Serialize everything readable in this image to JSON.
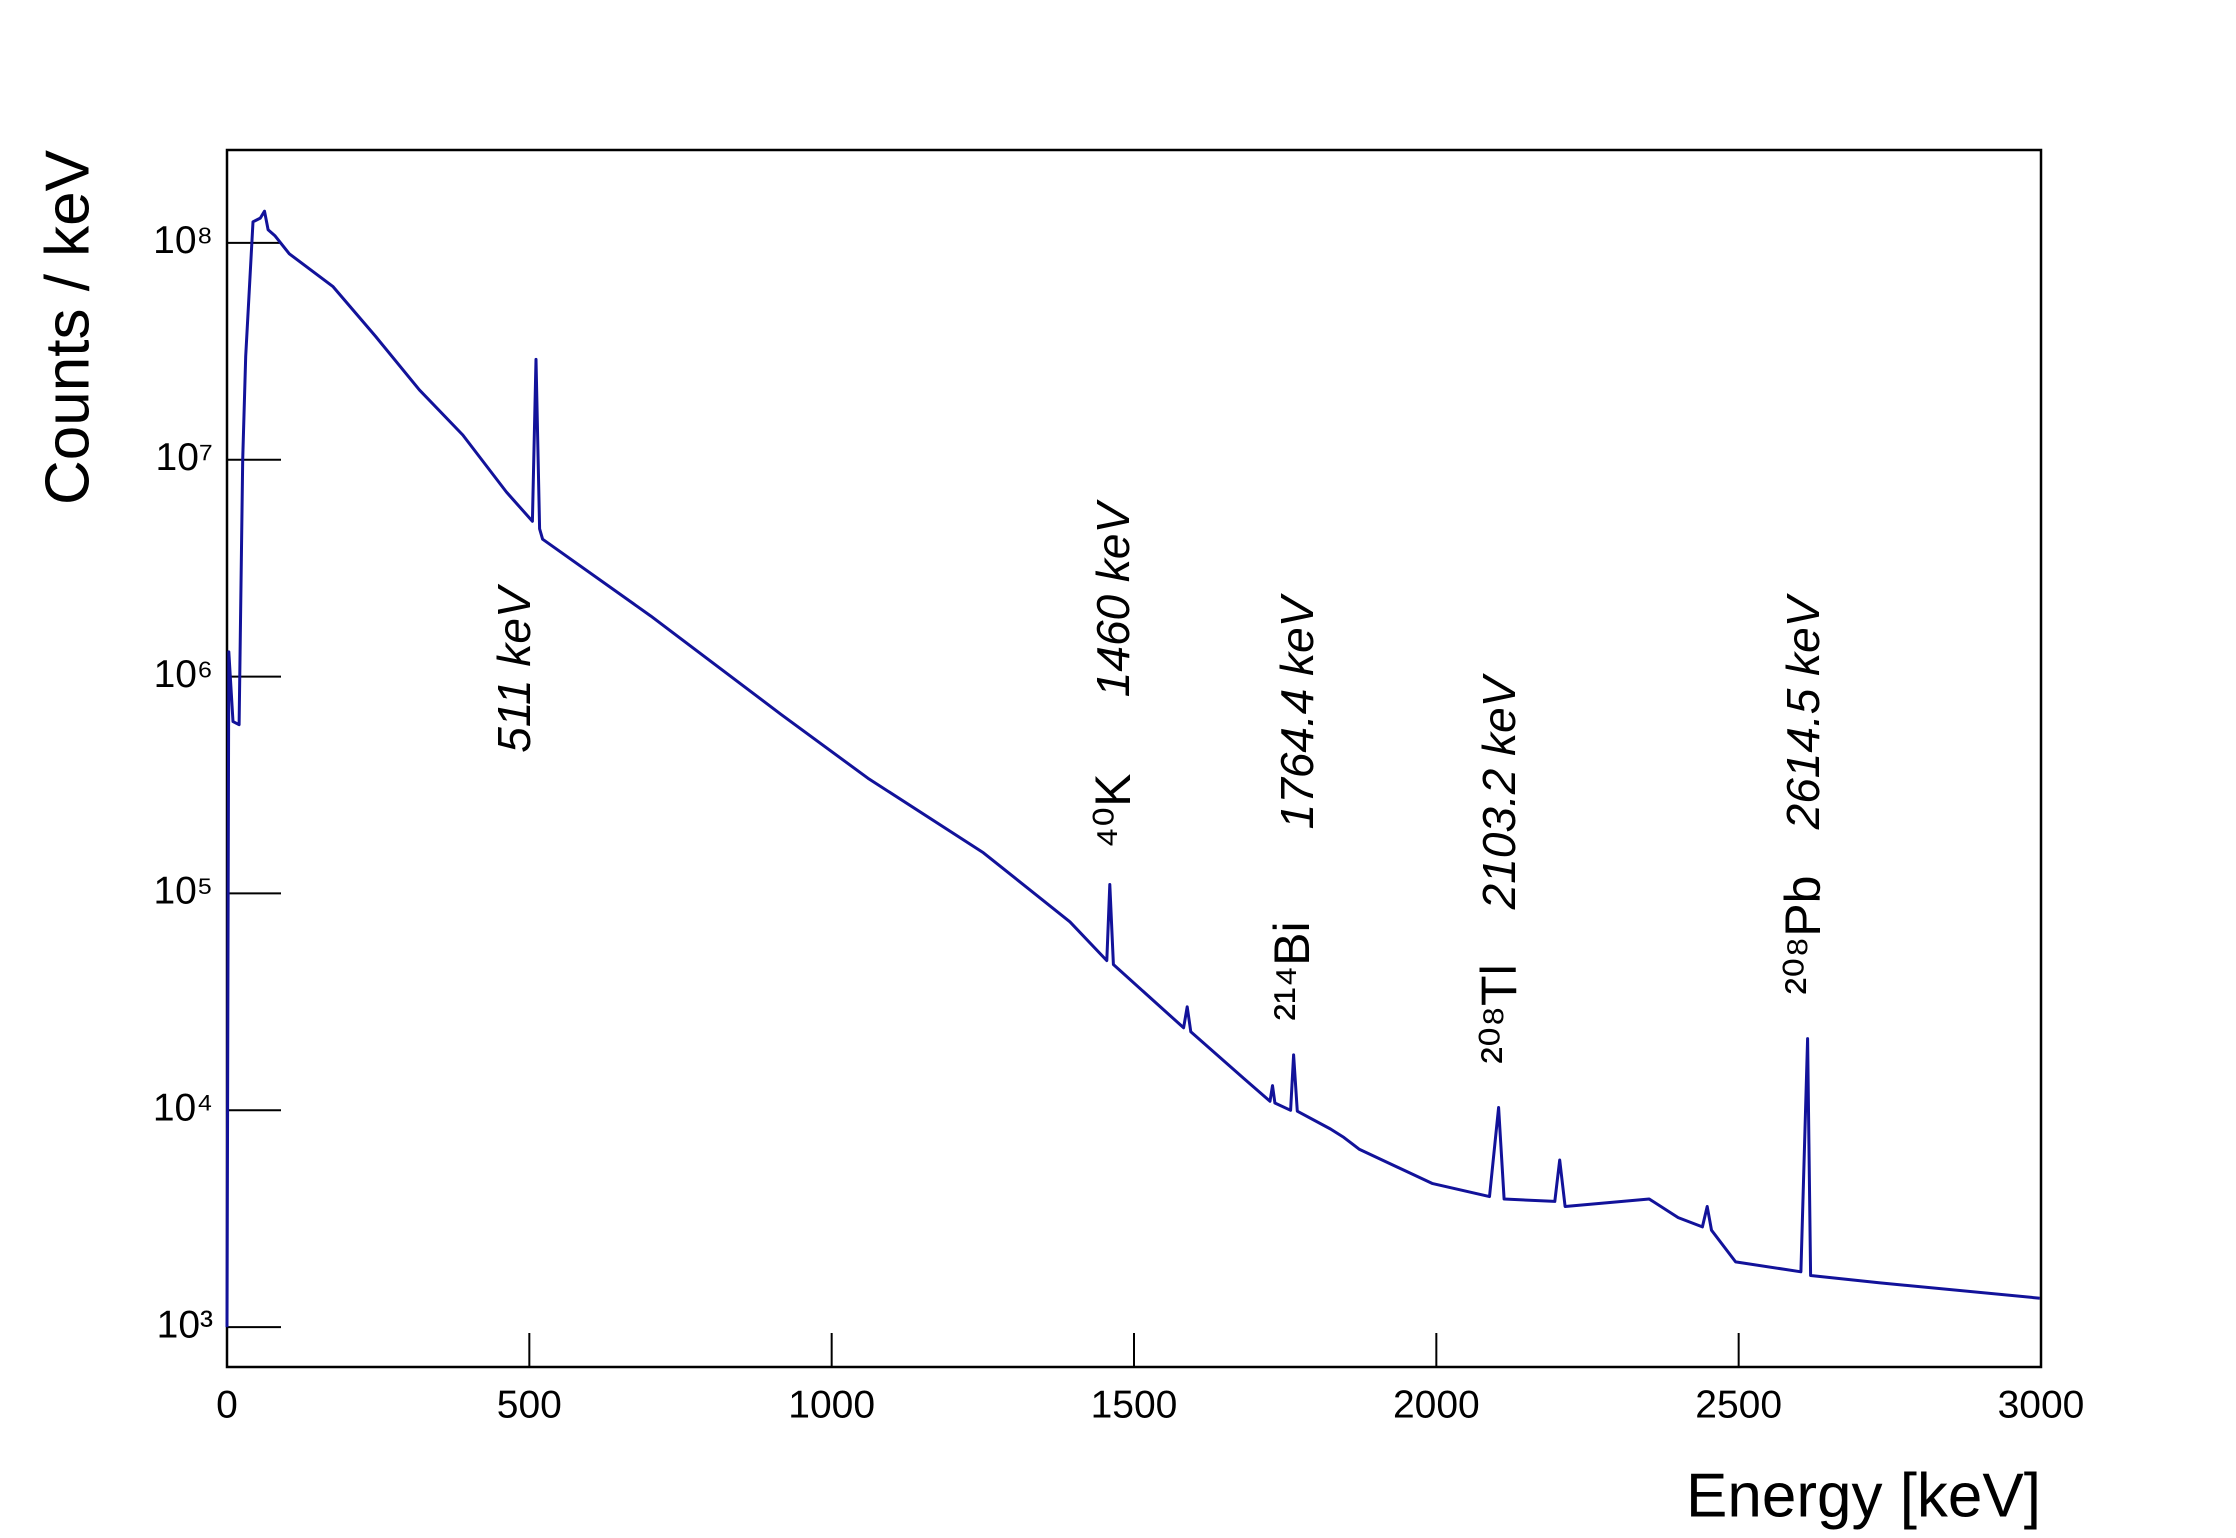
{
  "chart_data": {
    "type": "line",
    "xlabel": "Energy [keV]",
    "ylabel": "Counts / keV",
    "x": [
      0,
      3,
      10,
      20,
      26,
      31,
      43,
      55,
      62,
      68,
      79,
      103,
      175,
      246,
      318,
      390,
      462,
      505,
      511,
      517,
      522,
      701,
      916,
      1060,
      1251,
      1394,
      1455,
      1460,
      1466,
      1582,
      1588,
      1594,
      1682,
      1725,
      1729,
      1733,
      1759,
      1764,
      1770,
      1825,
      1847,
      1873,
      1993,
      2088,
      2103,
      2112,
      2196,
      2204,
      2213,
      2352,
      2400,
      2440,
      2448,
      2455,
      2495,
      2603,
      2614,
      2619,
      2734,
      2998
    ],
    "series": [
      {
        "color": "#12129a",
        "values": [
          1000,
          1300000,
          620000,
          600000,
          10000000,
          30000000,
          125000000,
          130000000,
          140000000,
          115000000,
          108000000,
          89000000,
          63000000,
          37000000,
          21000000,
          13000000,
          7100000,
          5200000,
          29000000,
          4800000,
          4300000,
          1900000,
          670000,
          340000,
          154000,
          74000,
          49000,
          110000,
          47000,
          24000,
          30000,
          23000,
          14000,
          11000,
          13000,
          10800,
          10000,
          18000,
          9900,
          8200,
          7500,
          6600,
          4600,
          4000,
          10300,
          3900,
          3800,
          5900,
          3600,
          3900,
          3200,
          2900,
          3600,
          2800,
          2000,
          1800,
          21400,
          1730,
          1600,
          1360
        ]
      }
    ],
    "xlim": [
      0,
      3000
    ],
    "xticks": [
      0,
      500,
      1000,
      1500,
      2000,
      2500,
      3000
    ],
    "ylim": [
      655,
      268000000
    ],
    "log_y": true,
    "yticks": [
      {
        "value": 1000,
        "label": "10³"
      },
      {
        "value": 10000,
        "label": "10⁴"
      },
      {
        "value": 100000,
        "label": "10⁵"
      },
      {
        "value": 1000000,
        "label": "10⁶"
      },
      {
        "value": 10000000,
        "label": "10⁷"
      },
      {
        "value": 100000000,
        "label": "10⁸"
      }
    ],
    "peak_labels": [
      "511 keV",
      "1460 keV",
      "1764.4 keV",
      "2103.2 keV",
      "2614.5 keV"
    ],
    "isotope_labels": [
      "⁴⁰K",
      "²¹⁴Bi",
      "²⁰⁸Tl",
      "²⁰⁸Pb"
    ]
  }
}
